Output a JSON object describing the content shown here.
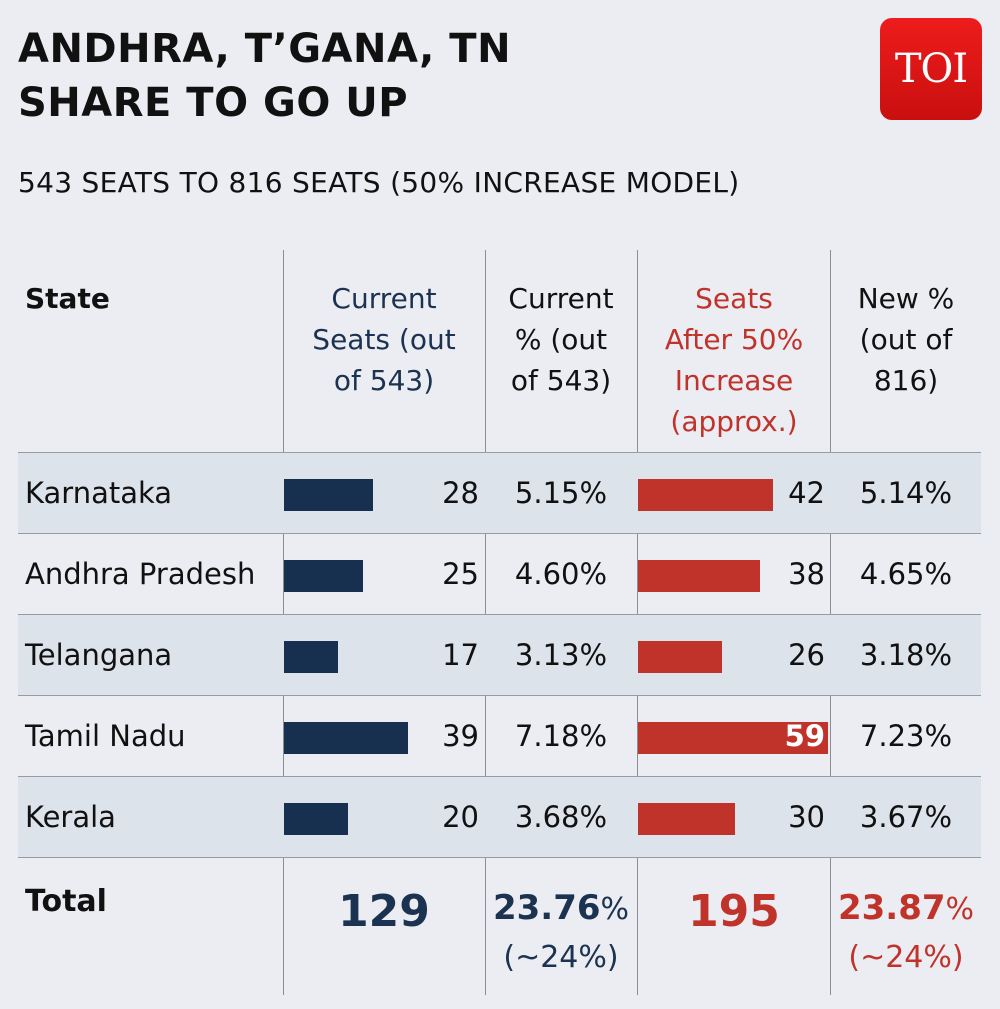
{
  "header": {
    "title_line1": "ANDHRA, T’GANA, TN",
    "title_line2": "SHARE TO GO UP",
    "subtitle": "543 SEATS TO 816 SEATS (50% INCREASE MODEL)",
    "logo_text": "TOI"
  },
  "colors": {
    "navy": "#17304f",
    "red": "#c0332b",
    "shade": "#dde3ea"
  },
  "table": {
    "col_state": "State",
    "col_current_seats": [
      "Current",
      "Seats (out",
      "of 543)"
    ],
    "col_current_pct": [
      "Current",
      "% (out",
      "of 543)"
    ],
    "col_after_seats": [
      "Seats",
      "After 50%",
      "Increase",
      "(approx.)"
    ],
    "col_new_pct": [
      "New %",
      "(out of",
      "816)"
    ]
  },
  "chart_data": {
    "type": "table",
    "title": "ANDHRA, T’GANA, TN SHARE TO GO UP",
    "subtitle": "543 SEATS TO 816 SEATS (50% INCREASE MODEL)",
    "categories": [
      "Karnataka",
      "Andhra Pradesh",
      "Telangana",
      "Tamil Nadu",
      "Kerala"
    ],
    "series": [
      {
        "name": "Current Seats (out of 543)",
        "values": [
          28,
          25,
          17,
          39,
          20
        ]
      },
      {
        "name": "Current % (out of 543)",
        "values": [
          "5.15%",
          "4.60%",
          "3.13%",
          "7.18%",
          "3.68%"
        ]
      },
      {
        "name": "Seats After 50% Increase (approx.)",
        "values": [
          42,
          38,
          26,
          59,
          30
        ]
      },
      {
        "name": "New % (out of 816)",
        "values": [
          "5.14%",
          "4.65%",
          "3.18%",
          "7.23%",
          "3.67%"
        ]
      }
    ],
    "total": {
      "label": "Total",
      "current_seats": "129",
      "current_pct": "23.76",
      "current_pct_approx": "(~24%)",
      "after_seats": "195",
      "new_pct": "23.87",
      "new_pct_approx": "(~24%)",
      "pct_sign": "%"
    }
  }
}
